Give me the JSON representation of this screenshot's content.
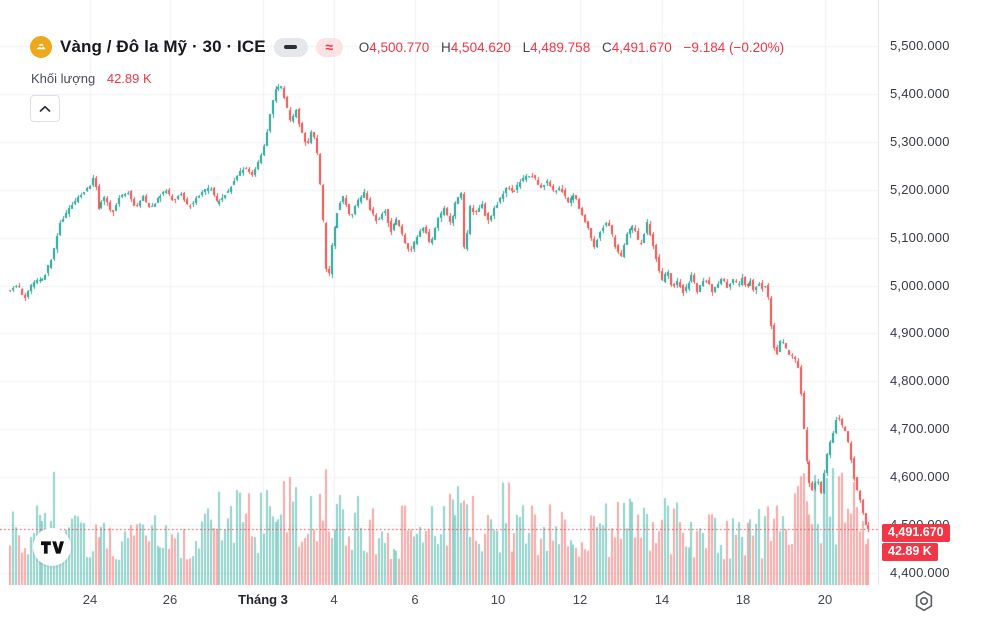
{
  "header": {
    "title": "Vàng / Đô la Mỹ · 30 · ICE",
    "pills": {
      "dash": "–",
      "approx": "≈"
    },
    "ohlc": {
      "o_label": "O",
      "o": "4,500.770",
      "h_label": "H",
      "h": "4,504.620",
      "l_label": "L",
      "l": "4,489.758",
      "c_label": "C",
      "c": "4,491.670",
      "change": "−9.184 (−0.20%)"
    },
    "volume_label": "Khối lượng",
    "volume_value": "42.89 K"
  },
  "badges": {
    "price": "4,491.670",
    "volume": "42.89 K"
  },
  "icons": {
    "symbol": "gold-bars-icon",
    "collapse": "chevron-up-icon",
    "dash": "dash-icon",
    "approx": "approx-icon",
    "settings": "gear-icon",
    "logo": "tradingview-logo"
  },
  "colors": {
    "up": "#26a69a",
    "down": "#ef5350",
    "accent_red": "#f23645",
    "text": "#17191f",
    "grid": "#f1f2f4",
    "gold": "#eda81c"
  },
  "chart_data": {
    "type": "candlestick",
    "title": "Vàng / Đô la Mỹ · 30 · ICE",
    "symbol": "Vàng / Đô la Mỹ",
    "interval": "30",
    "exchange": "ICE",
    "ohlc_last": {
      "open": 4500.77,
      "high": 4504.62,
      "low": 4489.758,
      "close": 4491.67,
      "change": -9.184,
      "change_pct": -0.2
    },
    "last_volume": "42.89 K",
    "close_price": 4491.67,
    "grid": true,
    "y_axis": {
      "min": 4400,
      "max": 5500,
      "tick_step": 100,
      "ylim": [
        4400,
        5500
      ],
      "ticks": [
        {
          "v": 5500,
          "label": "5,500.000"
        },
        {
          "v": 5400,
          "label": "5,400.000"
        },
        {
          "v": 5300,
          "label": "5,300.000"
        },
        {
          "v": 5200,
          "label": "5,200.000"
        },
        {
          "v": 5100,
          "label": "5,100.000"
        },
        {
          "v": 5000,
          "label": "5,000.000"
        },
        {
          "v": 4900,
          "label": "4,900.000"
        },
        {
          "v": 4800,
          "label": "4,800.000"
        },
        {
          "v": 4700,
          "label": "4,700.000"
        },
        {
          "v": 4600,
          "label": "4,600.000"
        },
        {
          "v": 4500,
          "label": "4,500.000"
        },
        {
          "v": 4400,
          "label": "4,400.000"
        }
      ]
    },
    "x_axis": {
      "ticks": [
        {
          "label": "24",
          "pos": 90,
          "em": false
        },
        {
          "label": "26",
          "pos": 170,
          "em": false
        },
        {
          "label": "Tháng 3",
          "pos": 263,
          "em": true
        },
        {
          "label": "4",
          "pos": 334,
          "em": false
        },
        {
          "label": "6",
          "pos": 415,
          "em": false
        },
        {
          "label": "10",
          "pos": 498,
          "em": false
        },
        {
          "label": "12",
          "pos": 580,
          "em": false
        },
        {
          "label": "14",
          "pos": 662,
          "em": false
        },
        {
          "label": "18",
          "pos": 743,
          "em": false
        },
        {
          "label": "20",
          "pos": 825,
          "em": false
        }
      ]
    },
    "price_path": [
      [
        12,
        4990
      ],
      [
        20,
        5002
      ],
      [
        27,
        4972
      ],
      [
        36,
        5008
      ],
      [
        46,
        5014
      ],
      [
        55,
        5058
      ],
      [
        63,
        5130
      ],
      [
        72,
        5160
      ],
      [
        82,
        5188
      ],
      [
        92,
        5205
      ],
      [
        97,
        5232
      ],
      [
        101,
        5162
      ],
      [
        108,
        5185
      ],
      [
        115,
        5148
      ],
      [
        123,
        5188
      ],
      [
        131,
        5196
      ],
      [
        138,
        5163
      ],
      [
        146,
        5186
      ],
      [
        153,
        5158
      ],
      [
        161,
        5186
      ],
      [
        169,
        5198
      ],
      [
        176,
        5178
      ],
      [
        184,
        5192
      ],
      [
        191,
        5164
      ],
      [
        199,
        5182
      ],
      [
        206,
        5196
      ],
      [
        213,
        5207
      ],
      [
        219,
        5172
      ],
      [
        226,
        5186
      ],
      [
        233,
        5202
      ],
      [
        241,
        5232
      ],
      [
        248,
        5247
      ],
      [
        255,
        5228
      ],
      [
        261,
        5258
      ],
      [
        267,
        5292
      ],
      [
        272,
        5352
      ],
      [
        278,
        5408
      ],
      [
        284,
        5418
      ],
      [
        289,
        5378
      ],
      [
        294,
        5338
      ],
      [
        299,
        5368
      ],
      [
        304,
        5322
      ],
      [
        310,
        5288
      ],
      [
        315,
        5332
      ],
      [
        320,
        5275
      ],
      [
        325,
        5155
      ],
      [
        330,
        4992
      ],
      [
        335,
        5092
      ],
      [
        341,
        5162
      ],
      [
        347,
        5187
      ],
      [
        353,
        5142
      ],
      [
        360,
        5172
      ],
      [
        367,
        5197
      ],
      [
        373,
        5158
      ],
      [
        380,
        5132
      ],
      [
        387,
        5162
      ],
      [
        393,
        5112
      ],
      [
        400,
        5142
      ],
      [
        407,
        5092
      ],
      [
        413,
        5068
      ],
      [
        420,
        5102
      ],
      [
        427,
        5126
      ],
      [
        433,
        5082
      ],
      [
        440,
        5136
      ],
      [
        447,
        5162
      ],
      [
        453,
        5128
      ],
      [
        460,
        5182
      ],
      [
        465,
        5192
      ],
      [
        468,
        5038
      ],
      [
        472,
        5168
      ],
      [
        478,
        5148
      ],
      [
        485,
        5172
      ],
      [
        490,
        5132
      ],
      [
        497,
        5162
      ],
      [
        503,
        5182
      ],
      [
        510,
        5207
      ],
      [
        517,
        5196
      ],
      [
        524,
        5217
      ],
      [
        530,
        5232
      ],
      [
        537,
        5226
      ],
      [
        543,
        5204
      ],
      [
        550,
        5216
      ],
      [
        557,
        5193
      ],
      [
        563,
        5206
      ],
      [
        570,
        5172
      ],
      [
        577,
        5192
      ],
      [
        583,
        5158
      ],
      [
        590,
        5128
      ],
      [
        597,
        5082
      ],
      [
        603,
        5112
      ],
      [
        610,
        5136
      ],
      [
        617,
        5088
      ],
      [
        623,
        5058
      ],
      [
        630,
        5112
      ],
      [
        637,
        5126
      ],
      [
        643,
        5078
      ],
      [
        650,
        5132
      ],
      [
        655,
        5092
      ],
      [
        660,
        5048
      ],
      [
        665,
        5008
      ],
      [
        670,
        5032
      ],
      [
        675,
        4992
      ],
      [
        680,
        5012
      ],
      [
        685,
        4984
      ],
      [
        690,
        5002
      ],
      [
        695,
        5022
      ],
      [
        700,
        4988
      ],
      [
        705,
        5006
      ],
      [
        710,
        5012
      ],
      [
        715,
        4984
      ],
      [
        720,
        5002
      ],
      [
        725,
        5016
      ],
      [
        730,
        4994
      ],
      [
        735,
        5012
      ],
      [
        740,
        5000
      ],
      [
        745,
        5016
      ],
      [
        749,
        4994
      ],
      [
        753,
        5012
      ],
      [
        757,
        4988
      ],
      [
        761,
        5006
      ],
      [
        765,
        4994
      ],
      [
        769,
        5002
      ],
      [
        772,
        4962
      ],
      [
        776,
        4872
      ],
      [
        780,
        4860
      ],
      [
        784,
        4892
      ],
      [
        788,
        4870
      ],
      [
        792,
        4856
      ],
      [
        796,
        4850
      ],
      [
        800,
        4838
      ],
      [
        804,
        4768
      ],
      [
        808,
        4658
      ],
      [
        812,
        4592
      ],
      [
        816,
        4572
      ],
      [
        820,
        4602
      ],
      [
        824,
        4566
      ],
      [
        828,
        4622
      ],
      [
        832,
        4668
      ],
      [
        836,
        4692
      ],
      [
        840,
        4732
      ],
      [
        844,
        4712
      ],
      [
        848,
        4694
      ],
      [
        852,
        4664
      ],
      [
        856,
        4604
      ],
      [
        860,
        4570
      ],
      [
        864,
        4544
      ],
      [
        867,
        4506
      ],
      [
        870,
        4492
      ]
    ],
    "volume_profile": [
      [
        12,
        0.5
      ],
      [
        30,
        0.45
      ],
      [
        50,
        0.95
      ],
      [
        60,
        0.5
      ],
      [
        80,
        0.45
      ],
      [
        100,
        0.5
      ],
      [
        120,
        0.42
      ],
      [
        140,
        0.45
      ],
      [
        160,
        0.5
      ],
      [
        180,
        0.48
      ],
      [
        200,
        0.55
      ],
      [
        215,
        0.6
      ],
      [
        230,
        0.72
      ],
      [
        245,
        0.6
      ],
      [
        260,
        0.62
      ],
      [
        275,
        0.66
      ],
      [
        290,
        0.72
      ],
      [
        305,
        0.7
      ],
      [
        318,
        0.78
      ],
      [
        330,
        1.0
      ],
      [
        342,
        0.72
      ],
      [
        355,
        0.6
      ],
      [
        370,
        0.55
      ],
      [
        385,
        0.5
      ],
      [
        400,
        0.52
      ],
      [
        415,
        0.55
      ],
      [
        430,
        0.58
      ],
      [
        445,
        0.55
      ],
      [
        460,
        0.72
      ],
      [
        470,
        0.68
      ],
      [
        480,
        0.6
      ],
      [
        495,
        0.66
      ],
      [
        510,
        0.7
      ],
      [
        525,
        0.55
      ],
      [
        540,
        0.52
      ],
      [
        555,
        0.56
      ],
      [
        570,
        0.52
      ],
      [
        585,
        0.55
      ],
      [
        600,
        0.52
      ],
      [
        615,
        0.58
      ],
      [
        630,
        0.62
      ],
      [
        645,
        0.58
      ],
      [
        660,
        0.66
      ],
      [
        675,
        0.55
      ],
      [
        690,
        0.5
      ],
      [
        705,
        0.48
      ],
      [
        720,
        0.46
      ],
      [
        735,
        0.5
      ],
      [
        750,
        0.52
      ],
      [
        765,
        0.5
      ],
      [
        775,
        0.62
      ],
      [
        790,
        0.6
      ],
      [
        800,
        0.72
      ],
      [
        808,
        0.85
      ],
      [
        816,
        0.8
      ],
      [
        824,
        0.78
      ],
      [
        832,
        0.82
      ],
      [
        840,
        0.8
      ],
      [
        848,
        0.75
      ],
      [
        856,
        0.72
      ],
      [
        864,
        0.7
      ],
      [
        870,
        0.65
      ]
    ]
  }
}
